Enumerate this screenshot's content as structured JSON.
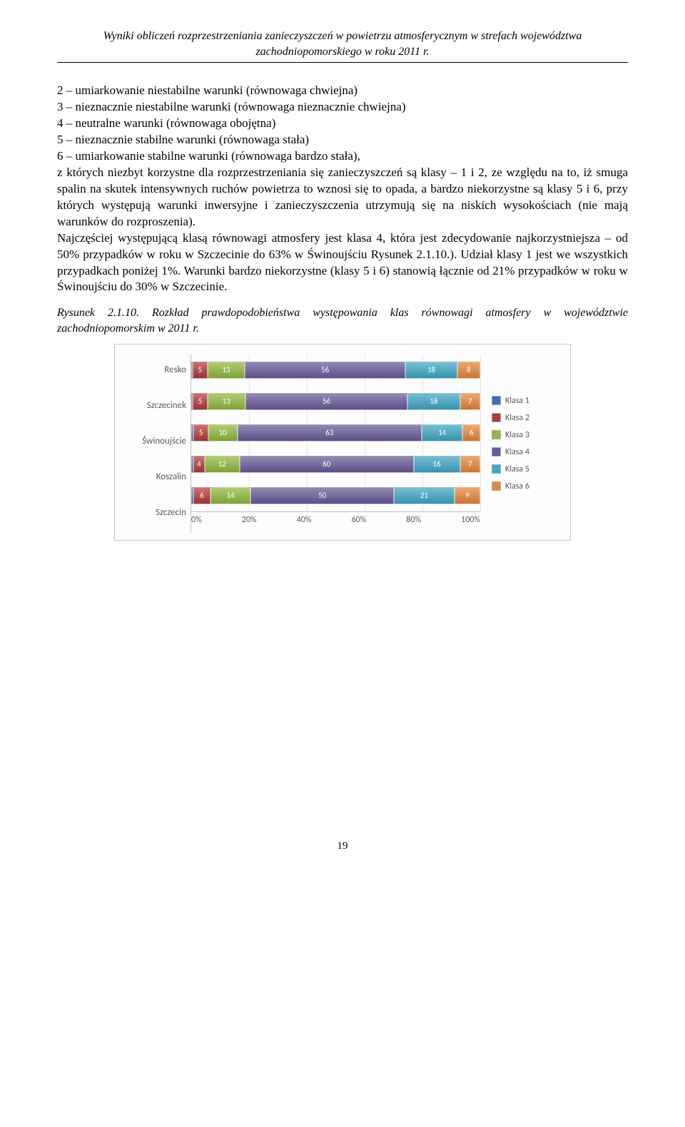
{
  "header_line1": "Wyniki obliczeń rozprzestrzeniania zanieczyszczeń w powietrzu atmosferycznym w strefach województwa",
  "header_line2": "zachodniopomorskiego w roku 2011 r.",
  "paragraph1": "2 – umiarkowanie niestabilne warunki (równowaga chwiejna)\n3 – nieznacznie niestabilne warunki (równowaga nieznacznie chwiejna)\n4 – neutralne warunki (równowaga obojętna)\n5 – nieznacznie stabilne warunki (równowaga stała)\n6 – umiarkowanie stabilne warunki (równowaga bardzo stała),\nz których niezbyt korzystne dla rozprzestrzeniania się zanieczyszczeń są klasy – 1 i 2, ze względu na to, iż smuga spalin na skutek intensywnych ruchów powietrza to wznosi się to opada, a bardzo niekorzystne są klasy 5 i 6, przy których występują warunki inwersyjne i zanieczyszczenia utrzymują się na niskich wysokościach (nie mają warunków do rozproszenia).\nNajczęściej występującą klasą równowagi atmosfery jest klasa 4, która jest zdecydowanie najkorzystniejsza – od 50% przypadków w roku w Szczecinie do 63% w Świnoujściu Rysunek 2.1.10.). Udział klasy 1 jest we wszystkich przypadkach poniżej 1%. Warunki bardzo niekorzystne (klasy 5 i 6) stanowią łącznie od 21% przypadków w roku w Świnoujściu do 30% w Szczecinie.",
  "caption_label": "Rysunek 2.1.10.",
  "caption_text": " Rozkład prawdopodobieństwa występowania klas równowagi atmosfery w województwie zachodniopomorskim w 2011 r.",
  "chart": {
    "type": "stacked-bar-horizontal",
    "categories": [
      "Resko",
      "Szczecinek",
      "Świnoujście",
      "Koszalin",
      "Szczecin"
    ],
    "series": [
      "Klasa 1",
      "Klasa 2",
      "Klasa 3",
      "Klasa 4",
      "Klasa 5",
      "Klasa 6"
    ],
    "values": [
      [
        0.6,
        5,
        13,
        56,
        18,
        8
      ],
      [
        0.6,
        5,
        13,
        56,
        18,
        7
      ],
      [
        0.8,
        5,
        10,
        63,
        14,
        6
      ],
      [
        0.7,
        4,
        12,
        60,
        16,
        7
      ],
      [
        0.7,
        6,
        14,
        50,
        21,
        9
      ]
    ],
    "shown_labels": [
      [
        "",
        "5",
        "13",
        "56",
        "18",
        "8"
      ],
      [
        "",
        "5",
        "13",
        "56",
        "18",
        "7"
      ],
      [
        "",
        "5",
        "10",
        "63",
        "14",
        "6"
      ],
      [
        "",
        "4",
        "12",
        "60",
        "16",
        "7"
      ],
      [
        "",
        "6",
        "14",
        "50",
        "21",
        "9"
      ]
    ],
    "colors": [
      "#3b6fb6",
      "#b23a3a",
      "#8fb93f",
      "#6a5a99",
      "#3fa6c4",
      "#e5863a"
    ],
    "xticks": [
      "0%",
      "20%",
      "40%",
      "60%",
      "80%",
      "100%"
    ],
    "xtick_positions_pct": [
      0,
      20,
      40,
      60,
      80,
      100
    ],
    "background": "#fdfdfd",
    "grid_color": "#e3e3e3",
    "border_color": "#c9c9c9",
    "label_color": "#595959",
    "font_family": "Calibri"
  },
  "page_number": "19"
}
